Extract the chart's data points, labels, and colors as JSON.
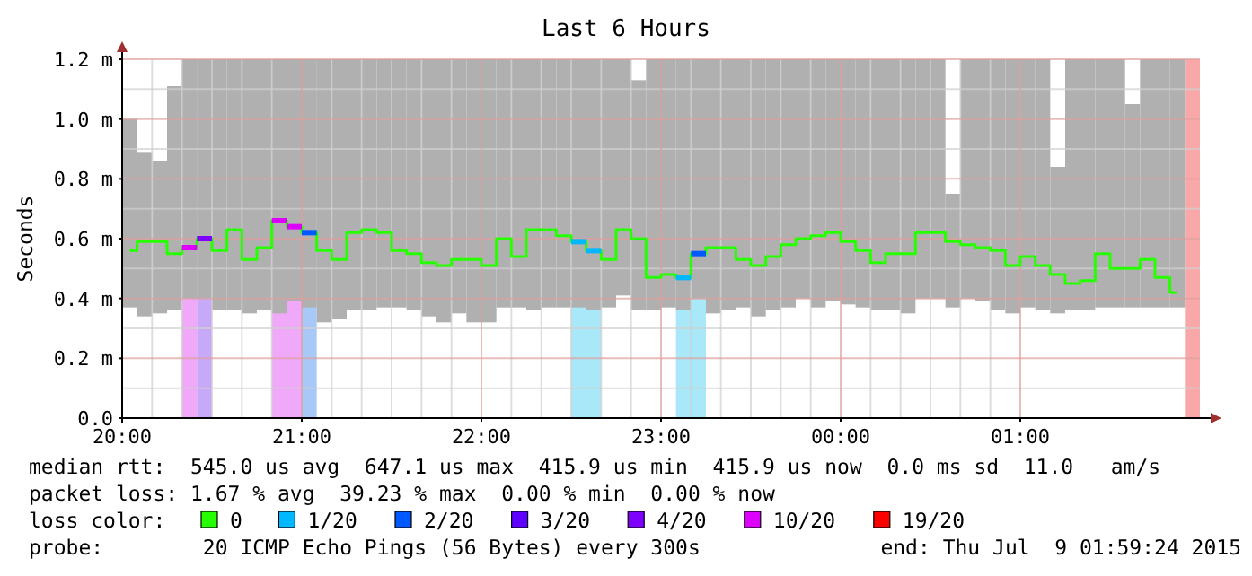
{
  "chart_data": {
    "type": "step",
    "title": "Last 6 Hours",
    "ylabel": "Seconds",
    "legend_title": "loss color:",
    "legend": "bottom",
    "grid": true,
    "xlim": [
      "2015-07-08T20:00",
      "2015-07-09T02:00"
    ],
    "xticks": [
      {
        "value": "2015-07-08T20:00",
        "label": "20:00"
      },
      {
        "value": "2015-07-08T21:00",
        "label": "21:00"
      },
      {
        "value": "2015-07-08T22:00",
        "label": "22:00"
      },
      {
        "value": "2015-07-08T23:00",
        "label": "23:00"
      },
      {
        "value": "2015-07-09T00:00",
        "label": "00:00"
      },
      {
        "value": "2015-07-09T01:00",
        "label": "01:00"
      }
    ],
    "ylim": [
      0,
      1.2
    ],
    "yticks": [
      {
        "value": 0,
        "label": "0.0"
      },
      {
        "value": 0.2,
        "label": "0.2 m"
      },
      {
        "value": 0.4,
        "label": "0.4 m"
      },
      {
        "value": 0.6,
        "label": "0.6 m"
      },
      {
        "value": 0.8,
        "label": "0.8 m"
      },
      {
        "value": 1.0,
        "label": "1.0 m"
      },
      {
        "value": 1.2,
        "label": "1.2 m"
      }
    ],
    "x": [
      "2015-07-08T20:02:30",
      "2015-07-08T20:07:30",
      "2015-07-08T20:12:30",
      "2015-07-08T20:17:30",
      "2015-07-08T20:22:30",
      "2015-07-08T20:27:30",
      "2015-07-08T20:32:30",
      "2015-07-08T20:37:30",
      "2015-07-08T20:42:30",
      "2015-07-08T20:47:30",
      "2015-07-08T20:52:30",
      "2015-07-08T20:57:30",
      "2015-07-08T21:02:30",
      "2015-07-08T21:07:30",
      "2015-07-08T21:12:30",
      "2015-07-08T21:17:30",
      "2015-07-08T21:22:30",
      "2015-07-08T21:27:30",
      "2015-07-08T21:32:30",
      "2015-07-08T21:37:30",
      "2015-07-08T21:42:30",
      "2015-07-08T21:47:30",
      "2015-07-08T21:52:30",
      "2015-07-08T21:57:30",
      "2015-07-08T22:02:30",
      "2015-07-08T22:07:30",
      "2015-07-08T22:12:30",
      "2015-07-08T22:17:30",
      "2015-07-08T22:22:30",
      "2015-07-08T22:27:30",
      "2015-07-08T22:32:30",
      "2015-07-08T22:37:30",
      "2015-07-08T22:42:30",
      "2015-07-08T22:47:30",
      "2015-07-08T22:52:30",
      "2015-07-08T22:57:30",
      "2015-07-08T23:02:30",
      "2015-07-08T23:07:30",
      "2015-07-08T23:12:30",
      "2015-07-08T23:17:30",
      "2015-07-08T23:22:30",
      "2015-07-08T23:27:30",
      "2015-07-08T23:32:30",
      "2015-07-08T23:37:30",
      "2015-07-08T23:42:30",
      "2015-07-08T23:47:30",
      "2015-07-08T23:52:30",
      "2015-07-08T23:57:30",
      "2015-07-09T00:02:30",
      "2015-07-09T00:07:30",
      "2015-07-09T00:12:30",
      "2015-07-09T00:17:30",
      "2015-07-09T00:22:30",
      "2015-07-09T00:27:30",
      "2015-07-09T00:32:30",
      "2015-07-09T00:37:30",
      "2015-07-09T00:42:30",
      "2015-07-09T00:47:30",
      "2015-07-09T00:52:30",
      "2015-07-09T00:57:30",
      "2015-07-09T01:02:30",
      "2015-07-09T01:07:30",
      "2015-07-09T01:12:30",
      "2015-07-09T01:17:30",
      "2015-07-09T01:22:30",
      "2015-07-09T01:27:30",
      "2015-07-09T01:32:30",
      "2015-07-09T01:37:30",
      "2015-07-09T01:42:30",
      "2015-07-09T01:47:30",
      "2015-07-09T01:52:30"
    ],
    "bands": [
      {
        "axis": "x",
        "from": "2015-07-08T20:20",
        "to": "2015-07-08T20:25",
        "color": "#f0a8f8"
      },
      {
        "axis": "x",
        "from": "2015-07-08T20:25",
        "to": "2015-07-08T20:30",
        "color": "#c8a8f8"
      },
      {
        "axis": "x",
        "from": "2015-07-08T20:50",
        "to": "2015-07-08T21:00",
        "color": "#f0a8f8"
      },
      {
        "axis": "x",
        "from": "2015-07-08T21:00",
        "to": "2015-07-08T21:05",
        "color": "#a8c8f8"
      },
      {
        "axis": "x",
        "from": "2015-07-08T22:30",
        "to": "2015-07-08T22:40",
        "color": "#a8e8f8"
      },
      {
        "axis": "x",
        "from": "2015-07-08T23:05",
        "to": "2015-07-08T23:15",
        "color": "#a8e8f8"
      },
      {
        "axis": "x",
        "from": "2015-07-09T01:55",
        "to": "2015-07-09T02:00",
        "color": "#f8a8a8"
      }
    ],
    "series": [
      {
        "type": "bar",
        "color": "#b0b0b0",
        "base": [
          0.37,
          0.34,
          0.35,
          0.36,
          0.4,
          0.4,
          0.36,
          0.36,
          0.35,
          0.36,
          0.35,
          0.39,
          0.37,
          0.32,
          0.33,
          0.36,
          0.36,
          0.37,
          0.37,
          0.36,
          0.34,
          0.32,
          0.35,
          0.32,
          0.32,
          0.37,
          0.37,
          0.36,
          0.37,
          0.37,
          0.37,
          0.36,
          0.37,
          0.41,
          0.36,
          0.36,
          0.37,
          0.36,
          0.4,
          0.35,
          0.36,
          0.37,
          0.34,
          0.36,
          0.37,
          0.4,
          0.37,
          0.39,
          0.38,
          0.37,
          0.36,
          0.36,
          0.35,
          0.4,
          0.4,
          0.37,
          0.4,
          0.39,
          0.36,
          0.35,
          0.37,
          0.36,
          0.35,
          0.36,
          0.36,
          0.37,
          0.37,
          0.37,
          0.37,
          0.37,
          0.37
        ],
        "values": [
          0.63,
          0.55,
          0.51,
          0.75,
          0.8,
          0.8,
          0.84,
          0.84,
          0.85,
          0.84,
          0.85,
          0.81,
          0.83,
          0.88,
          0.87,
          0.84,
          0.84,
          0.83,
          0.83,
          0.84,
          0.86,
          0.88,
          0.85,
          0.88,
          0.88,
          0.83,
          0.83,
          0.84,
          0.83,
          0.83,
          0.83,
          0.84,
          0.83,
          0.79,
          0.77,
          0.84,
          0.83,
          0.84,
          0.8,
          0.85,
          0.84,
          0.83,
          0.86,
          0.84,
          0.83,
          0.8,
          0.83,
          0.81,
          0.82,
          0.83,
          0.84,
          0.84,
          0.85,
          0.8,
          0.8,
          0.38,
          0.8,
          0.81,
          0.84,
          0.85,
          0.83,
          0.84,
          0.49,
          0.84,
          0.84,
          0.83,
          0.83,
          0.68,
          0.83,
          0.83,
          0.83
        ]
      },
      {
        "name": "0",
        "color": "#26ff00",
        "values": [
          0.56,
          0.59,
          0.59,
          0.55,
          0.57,
          0.6,
          0.56,
          0.63,
          0.53,
          0.57,
          0.66,
          0.64,
          0.62,
          0.56,
          0.53,
          0.62,
          0.63,
          0.62,
          0.56,
          0.55,
          0.52,
          0.51,
          0.53,
          0.53,
          0.51,
          0.6,
          0.54,
          0.63,
          0.63,
          0.61,
          0.59,
          0.56,
          0.53,
          0.63,
          0.6,
          0.47,
          0.48,
          0.47,
          0.55,
          0.57,
          0.57,
          0.53,
          0.51,
          0.54,
          0.58,
          0.6,
          0.61,
          0.62,
          0.59,
          0.56,
          0.52,
          0.55,
          0.55,
          0.62,
          0.62,
          0.59,
          0.58,
          0.57,
          0.56,
          0.51,
          0.54,
          0.51,
          0.48,
          0.45,
          0.46,
          0.55,
          0.5,
          0.5,
          0.53,
          0.47,
          0.42
        ],
        "marker": "none"
      },
      {
        "name": "1/20",
        "type": "scatter",
        "marker": "square",
        "color": "#00b8ff",
        "values": [
          null,
          null,
          null,
          null,
          null,
          null,
          null,
          null,
          null,
          null,
          null,
          null,
          null,
          null,
          null,
          null,
          null,
          null,
          null,
          null,
          null,
          null,
          null,
          null,
          null,
          null,
          null,
          null,
          null,
          null,
          0.59,
          0.56,
          null,
          null,
          null,
          null,
          null,
          0.47,
          null,
          null,
          null,
          null,
          null,
          null,
          null,
          null,
          null,
          null,
          null,
          null,
          null,
          null,
          null,
          null,
          null,
          null,
          null,
          null,
          null,
          null,
          null,
          null,
          null,
          null,
          null,
          null,
          null,
          null,
          null,
          null,
          null
        ]
      },
      {
        "name": "2/20",
        "type": "scatter",
        "marker": "square",
        "color": "#0059ff",
        "values": [
          null,
          null,
          null,
          null,
          null,
          null,
          null,
          null,
          null,
          null,
          null,
          null,
          0.62,
          null,
          null,
          null,
          null,
          null,
          null,
          null,
          null,
          null,
          null,
          null,
          null,
          null,
          null,
          null,
          null,
          null,
          null,
          null,
          null,
          null,
          null,
          null,
          null,
          null,
          0.55,
          null,
          null,
          null,
          null,
          null,
          null,
          null,
          null,
          null,
          null,
          null,
          null,
          null,
          null,
          null,
          null,
          null,
          null,
          null,
          null,
          null,
          null,
          null,
          null,
          null,
          null,
          null,
          null,
          null,
          null,
          null,
          null
        ]
      },
      {
        "name": "3/20",
        "type": "scatter",
        "marker": "square",
        "color": "#5e00ff",
        "values": [
          null,
          null,
          null,
          null,
          null,
          null,
          null,
          null,
          null,
          null,
          null,
          null,
          null,
          null,
          null,
          null,
          null,
          null,
          null,
          null,
          null,
          null,
          null,
          null,
          null,
          null,
          null,
          null,
          null,
          null,
          null,
          null,
          null,
          null,
          null,
          null,
          null,
          null,
          null,
          null,
          null,
          null,
          null,
          null,
          null,
          null,
          null,
          null,
          null,
          null,
          null,
          null,
          null,
          null,
          null,
          null,
          null,
          null,
          null,
          null,
          null,
          null,
          null,
          null,
          null,
          null,
          null,
          null,
          null,
          null,
          null
        ]
      },
      {
        "name": "4/20",
        "type": "scatter",
        "marker": "square",
        "color": "#7e00ff",
        "values": [
          null,
          null,
          null,
          null,
          null,
          0.6,
          null,
          null,
          null,
          null,
          null,
          null,
          null,
          null,
          null,
          null,
          null,
          null,
          null,
          null,
          null,
          null,
          null,
          null,
          null,
          null,
          null,
          null,
          null,
          null,
          null,
          null,
          null,
          null,
          null,
          null,
          null,
          null,
          null,
          null,
          null,
          null,
          null,
          null,
          null,
          null,
          null,
          null,
          null,
          null,
          null,
          null,
          null,
          null,
          null,
          null,
          null,
          null,
          null,
          null,
          null,
          null,
          null,
          null,
          null,
          null,
          null,
          null,
          null,
          null,
          null
        ]
      },
      {
        "name": "10/20",
        "type": "scatter",
        "marker": "square",
        "color": "#dd00ff",
        "values": [
          null,
          null,
          null,
          null,
          0.57,
          null,
          null,
          null,
          null,
          null,
          0.66,
          0.64,
          null,
          null,
          null,
          null,
          null,
          null,
          null,
          null,
          null,
          null,
          null,
          null,
          null,
          null,
          null,
          null,
          null,
          null,
          null,
          null,
          null,
          null,
          null,
          null,
          null,
          null,
          null,
          null,
          null,
          null,
          null,
          null,
          null,
          null,
          null,
          null,
          null,
          null,
          null,
          null,
          null,
          null,
          null,
          null,
          null,
          null,
          null,
          null,
          null,
          null,
          null,
          null,
          null,
          null,
          null,
          null,
          null,
          null,
          null
        ]
      },
      {
        "name": "19/20",
        "type": "scatter",
        "marker": "square",
        "color": "#ff0000",
        "values": [
          null,
          null,
          null,
          null,
          null,
          null,
          null,
          null,
          null,
          null,
          null,
          null,
          null,
          null,
          null,
          null,
          null,
          null,
          null,
          null,
          null,
          null,
          null,
          null,
          null,
          null,
          null,
          null,
          null,
          null,
          null,
          null,
          null,
          null,
          null,
          null,
          null,
          null,
          null,
          null,
          null,
          null,
          null,
          null,
          null,
          null,
          null,
          null,
          null,
          null,
          null,
          null,
          null,
          null,
          null,
          null,
          null,
          null,
          null,
          null,
          null,
          null,
          null,
          null,
          null,
          null,
          null,
          null,
          null,
          null,
          null
        ]
      }
    ],
    "annotations": [
      "median rtt:  545.0 us avg  647.1 us max  415.9 us min  415.9 us now  0.0 ms sd  11.0   am/s",
      "packet loss: 1.67 % avg  39.23 % max  0.00 % min  0.00 % now",
      "probe:        20 ICMP Echo Pings (56 Bytes) every 300s",
      "end: Thu Jul  9 01:59:24 2015"
    ]
  }
}
